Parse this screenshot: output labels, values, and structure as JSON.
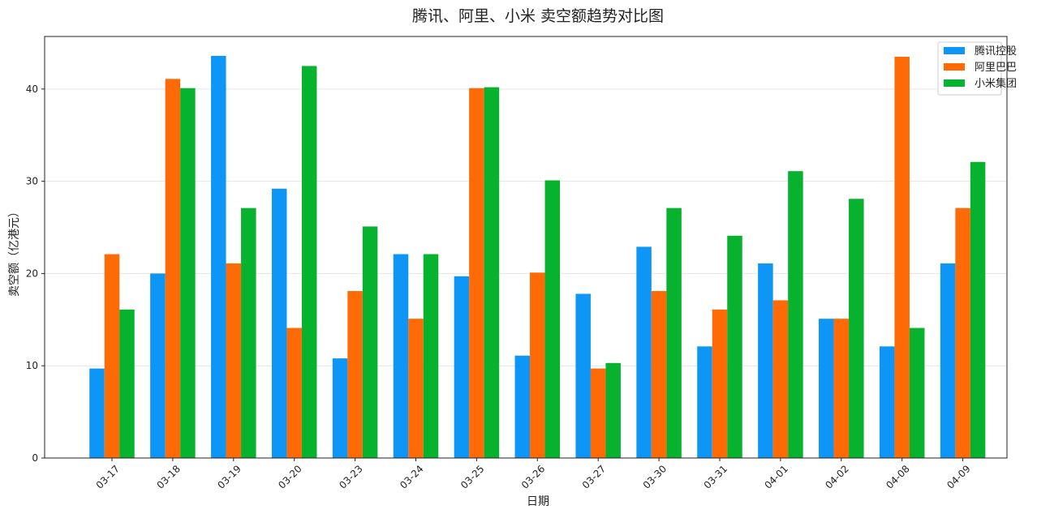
{
  "chart_data": {
    "type": "bar",
    "title": "腾讯、阿里、小米 卖空额趋势对比图",
    "xlabel": "日期",
    "ylabel": "卖空额（亿港元）",
    "categories": [
      "03-17",
      "03-18",
      "03-19",
      "03-20",
      "03-23",
      "03-24",
      "03-25",
      "03-26",
      "03-27",
      "03-30",
      "03-31",
      "04-01",
      "04-02",
      "04-08",
      "04-09"
    ],
    "ylim": [
      0,
      45.7
    ],
    "yticks": [
      0,
      10,
      20,
      30,
      40
    ],
    "grid": "horizontal",
    "legend_position": "top-right",
    "series": [
      {
        "name": "腾讯控股",
        "color": "#0d96f6",
        "values": [
          9.7,
          20.0,
          43.6,
          29.2,
          10.8,
          22.1,
          19.7,
          11.1,
          17.8,
          22.9,
          12.1,
          21.1,
          15.1,
          12.1,
          21.1
        ]
      },
      {
        "name": "阿里巴巴",
        "color": "#fe6a06",
        "values": [
          22.1,
          41.1,
          21.1,
          14.1,
          18.1,
          15.1,
          40.1,
          20.1,
          9.7,
          18.1,
          16.1,
          17.1,
          15.1,
          43.5,
          27.1
        ]
      },
      {
        "name": "小米集团",
        "color": "#06b22e",
        "values": [
          16.1,
          40.1,
          27.1,
          42.5,
          25.1,
          22.1,
          40.2,
          30.1,
          10.3,
          27.1,
          24.1,
          31.1,
          28.1,
          14.1,
          32.1
        ]
      }
    ]
  }
}
